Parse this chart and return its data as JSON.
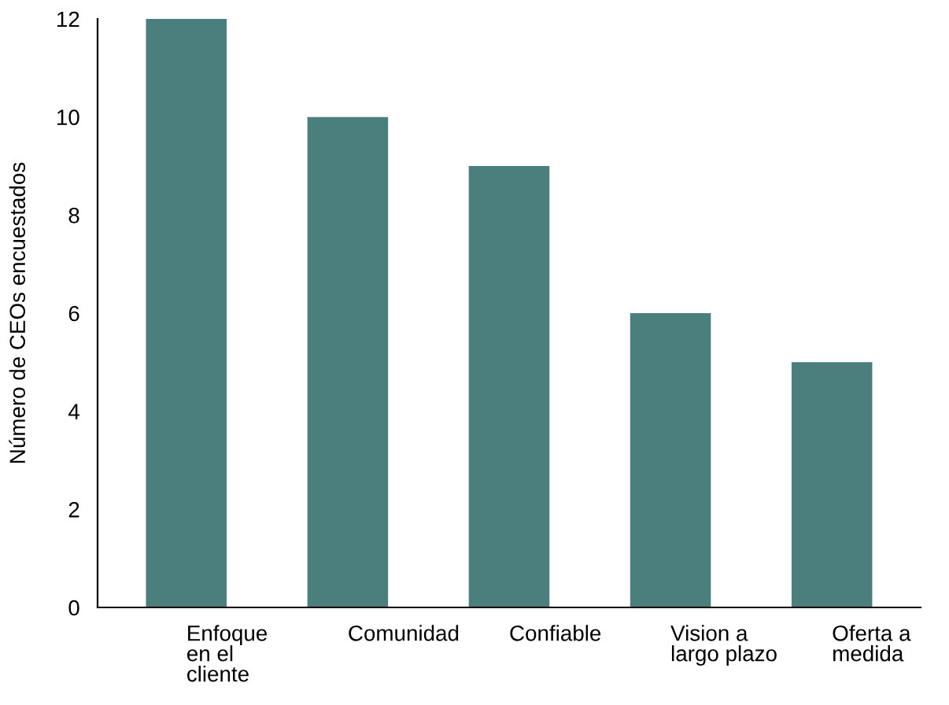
{
  "chart_data": {
    "type": "bar",
    "ylabel": "Número de CEOs encuestados",
    "categories": [
      "Enfoque\nen el\ncliente",
      "Comunidad",
      "Confiable",
      "Vision a\nlargo plazo",
      "Oferta a\nmedida"
    ],
    "values": [
      12,
      10,
      9,
      6,
      5
    ],
    "color": "#4a7f7e",
    "ylim": [
      0,
      12
    ],
    "yticks": [
      0,
      2,
      4,
      6,
      8,
      10,
      12
    ],
    "grid": false
  }
}
